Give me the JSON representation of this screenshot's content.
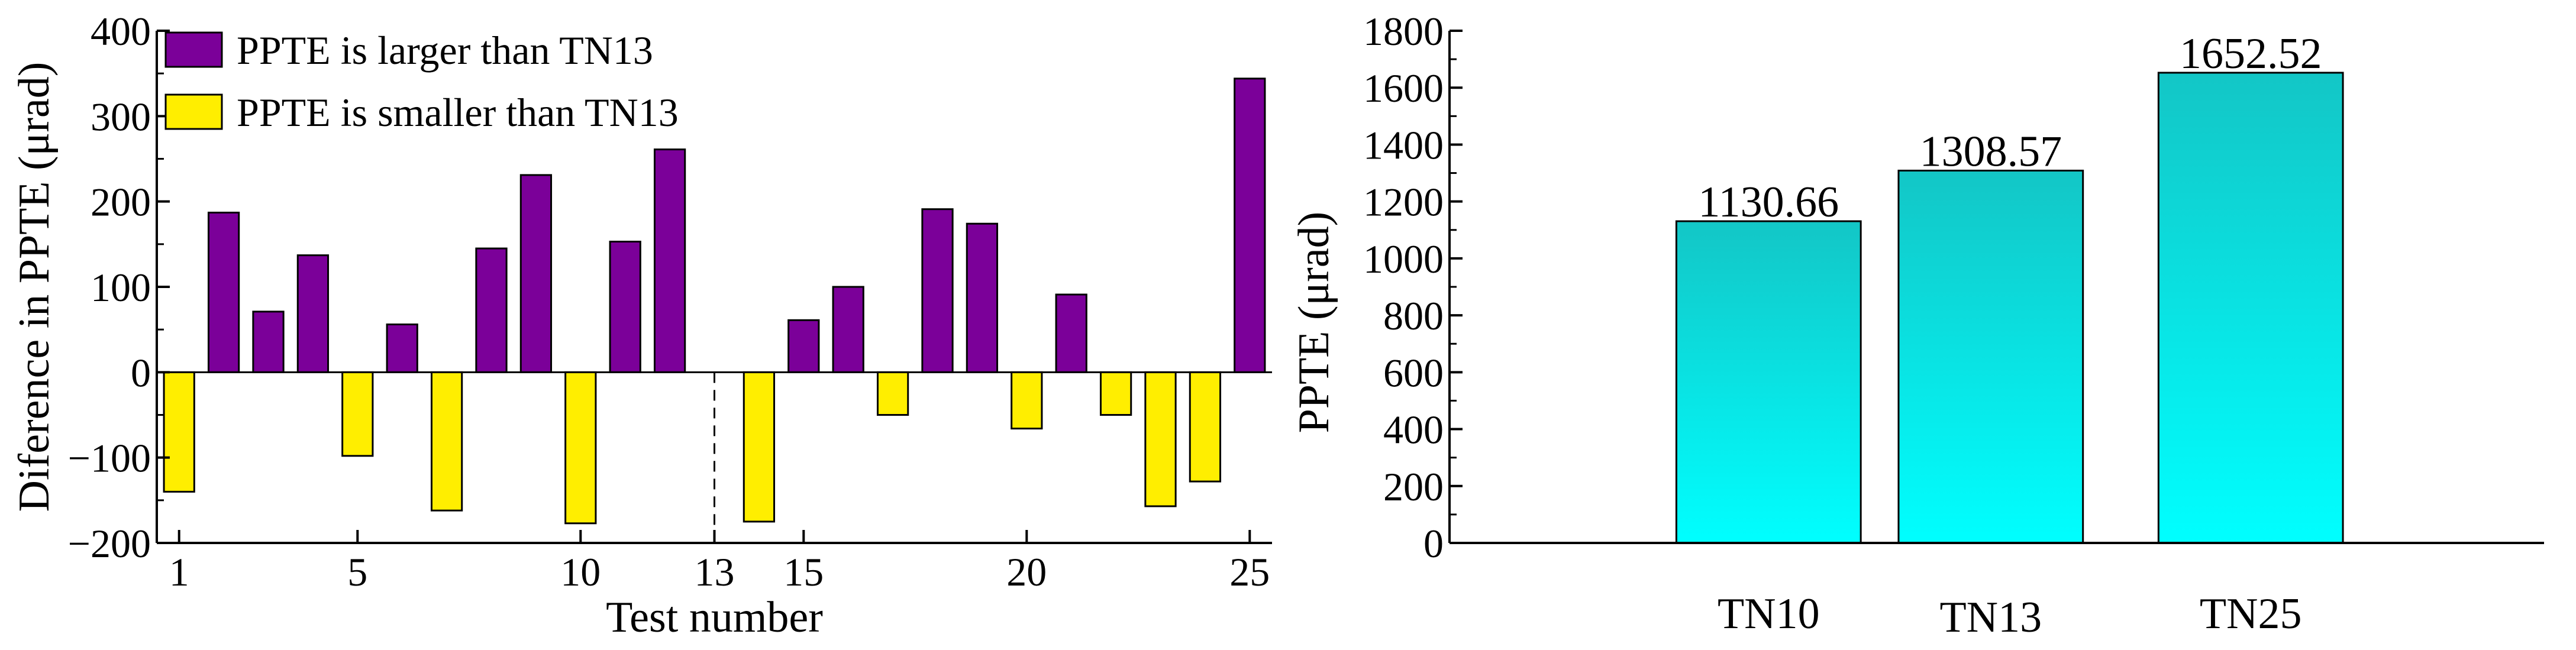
{
  "chart_data": [
    {
      "type": "bar",
      "title": "",
      "xlabel": "Test number",
      "ylabel": "Diference in PPTE (μrad)",
      "ylim": [
        -200,
        400
      ],
      "yticks": [
        -200,
        -100,
        0,
        100,
        200,
        300,
        400
      ],
      "xlim": [
        0.5,
        25.5
      ],
      "xticks": [
        1,
        5,
        10,
        13,
        15,
        20,
        25
      ],
      "reference_test": 13,
      "grid": false,
      "legend_position": "top-left",
      "x": [
        1,
        2,
        3,
        4,
        5,
        6,
        7,
        8,
        9,
        10,
        11,
        12,
        13,
        14,
        15,
        16,
        17,
        18,
        19,
        20,
        21,
        22,
        23,
        24,
        25
      ],
      "values": [
        -140,
        187,
        71,
        137,
        -98,
        56,
        -162,
        145,
        231,
        -177,
        153,
        261,
        0,
        -175,
        61,
        100,
        -50,
        191,
        174,
        -66,
        91,
        -50,
        -157,
        -128,
        344
      ],
      "series": [
        {
          "name": "PPTE is larger than TN13",
          "color": "#7b0099"
        },
        {
          "name": "PPTE is smaller than TN13",
          "color": "#ffee00"
        }
      ]
    },
    {
      "type": "bar",
      "title": "",
      "xlabel": "",
      "ylabel": "PPTE (μrad)",
      "ylim": [
        0,
        1800
      ],
      "yticks": [
        0,
        200,
        400,
        600,
        800,
        1000,
        1200,
        1400,
        1600,
        1800
      ],
      "grid": false,
      "categories": [
        "TN10",
        "TN13",
        "TN25"
      ],
      "values": [
        1130.66,
        1308.57,
        1652.52
      ],
      "data_labels": [
        "1130.66",
        "1308.57",
        "1652.52"
      ],
      "color": "#00e6e6"
    }
  ]
}
